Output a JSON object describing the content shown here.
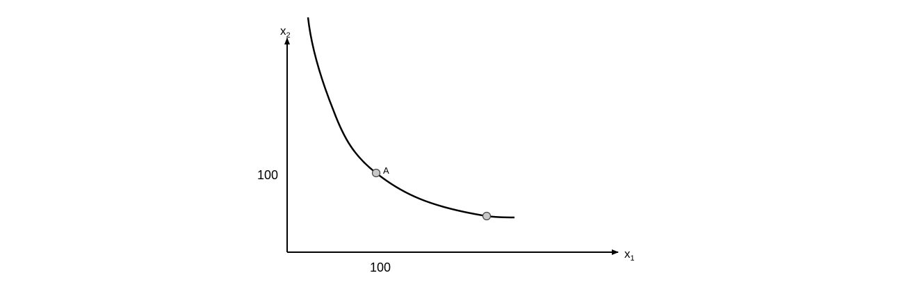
{
  "diagram": {
    "axes": {
      "x_label": "x",
      "x_label_sub": "1",
      "y_label": "x",
      "y_label_sub": "2",
      "x_tick": "100",
      "y_tick": "100"
    },
    "points": [
      {
        "label": "A"
      },
      {
        "label": ""
      }
    ],
    "colors": {
      "line": "#000000",
      "point_fill": "#c8c8c8",
      "point_stroke": "#444444"
    }
  }
}
